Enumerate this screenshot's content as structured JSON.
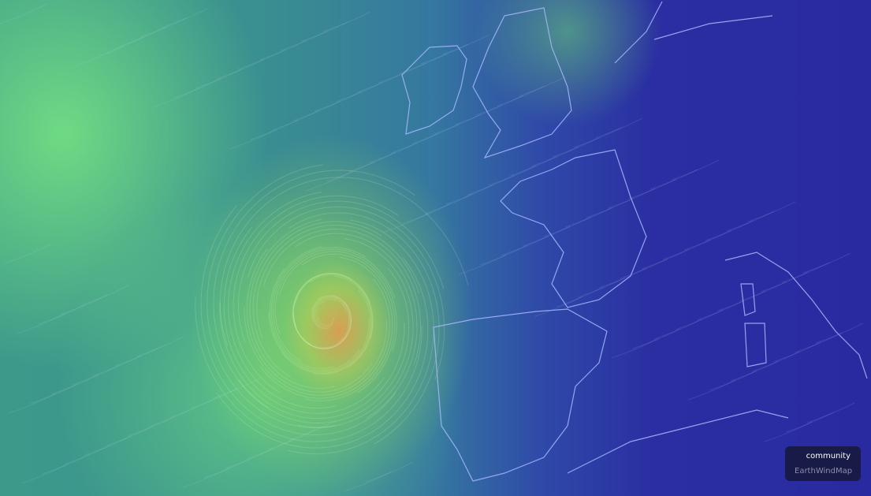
{
  "app": "EarthWindMap",
  "badge": {
    "label": "community",
    "brand": "EarthWindMap"
  },
  "map": {
    "layer": "wind",
    "cyclone_center": "west of Iberia",
    "colors": {
      "calm": "#2a2ea2",
      "moderate": "#3d9a8a",
      "strong": "#8ee07a",
      "extreme": "#e0905a",
      "coastline": "#9fb4ff"
    }
  }
}
